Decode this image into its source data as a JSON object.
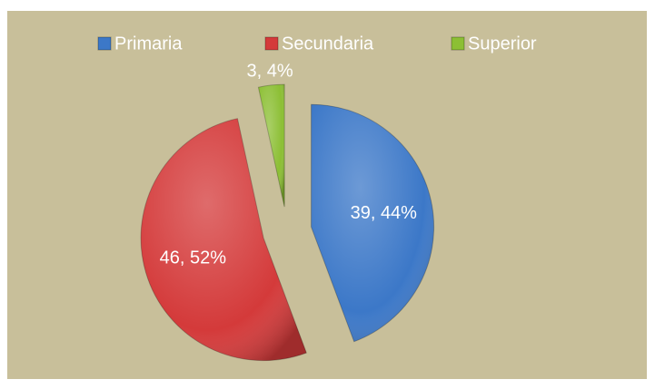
{
  "chart_data": {
    "type": "pie",
    "categories": [
      "Primaria",
      "Secundaria",
      "Superior"
    ],
    "values": [
      39,
      46,
      3
    ],
    "value_labels": [
      "39, 44%",
      "46, 52%",
      "3, 4%"
    ],
    "colors": [
      "#3c78c8",
      "#d43a3a",
      "#8cbf34"
    ],
    "legend": "top"
  }
}
